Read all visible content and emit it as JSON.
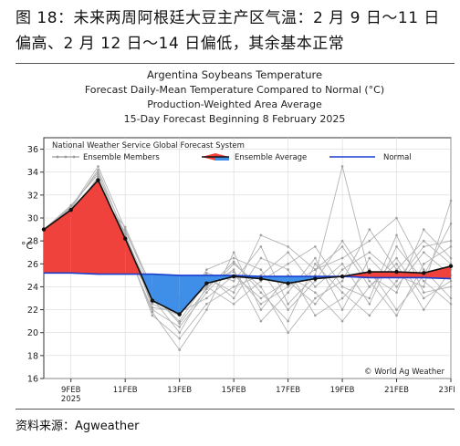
{
  "caption": "图 18：未来两周阿根廷大豆主产区气温：2 月 9 日～11 日偏高、2 月 12 日～14 日偏低，其余基本正常",
  "source": "资料来源：Agweather",
  "chart_data": {
    "type": "line",
    "title_lines": [
      "Argentina Soybeans Temperature",
      "Forecast Daily-Mean Temperature Compared to Normal (°C)",
      "Production-Weighted Area Average",
      "15-Day Forecast Beginning 8 February 2025"
    ],
    "ylabel": "°C",
    "ylim": [
      16,
      37
    ],
    "yticks": [
      "16",
      "18",
      "20",
      "22",
      "24",
      "26",
      "28",
      "30",
      "32",
      "34",
      "36"
    ],
    "xlim": [
      0,
      15
    ],
    "xticks": [
      {
        "x": 1,
        "label": "9FEB",
        "sub": "2025"
      },
      {
        "x": 3,
        "label": "11FEB",
        "sub": ""
      },
      {
        "x": 5,
        "label": "13FEB",
        "sub": ""
      },
      {
        "x": 7,
        "label": "15FEB",
        "sub": ""
      },
      {
        "x": 9,
        "label": "17FEB",
        "sub": ""
      },
      {
        "x": 11,
        "label": "19FEB",
        "sub": ""
      },
      {
        "x": 13,
        "label": "21FEB",
        "sub": ""
      },
      {
        "x": 15,
        "label": "23FEB",
        "sub": ""
      }
    ],
    "legend": {
      "header": "National Weather Service Global Forecast System",
      "members_label": "Ensemble Members",
      "average_label": "Ensemble Average",
      "normal_label": "Normal"
    },
    "credit": "© World Ag Weather",
    "x": [
      0,
      1,
      2,
      3,
      4,
      5,
      6,
      7,
      8,
      9,
      10,
      11,
      12,
      13,
      14,
      15
    ],
    "series": [
      {
        "name": "Ensemble Average",
        "values": [
          29.0,
          30.7,
          33.3,
          28.2,
          22.8,
          21.6,
          24.3,
          24.9,
          24.7,
          24.3,
          24.7,
          24.9,
          25.3,
          25.3,
          25.2,
          25.8
        ]
      },
      {
        "name": "Normal",
        "values": [
          25.2,
          25.2,
          25.1,
          25.1,
          25.1,
          25.0,
          25.0,
          25.0,
          24.9,
          24.9,
          24.9,
          24.9,
          24.8,
          24.8,
          24.8,
          24.7
        ]
      }
    ],
    "ensemble_members": [
      [
        29.0,
        30.5,
        33.0,
        28.5,
        23.2,
        21.0,
        24.5,
        25.3,
        22.5,
        24.0,
        25.5,
        27.5,
        24.0,
        26.5,
        23.0,
        24.5
      ],
      [
        29.0,
        31.0,
        34.0,
        27.5,
        22.0,
        20.5,
        23.5,
        26.0,
        24.0,
        20.0,
        23.0,
        24.5,
        29.0,
        25.5,
        28.0,
        26.0
      ],
      [
        29.0,
        30.8,
        32.5,
        28.8,
        24.0,
        22.5,
        25.0,
        23.0,
        26.5,
        25.5,
        21.5,
        23.0,
        25.5,
        22.0,
        25.0,
        29.5
      ],
      [
        29.0,
        30.2,
        33.5,
        27.8,
        21.5,
        19.5,
        22.5,
        24.0,
        25.0,
        27.0,
        24.0,
        26.0,
        22.5,
        27.5,
        24.5,
        22.5
      ],
      [
        29.0,
        30.9,
        34.5,
        29.0,
        23.5,
        22.0,
        24.0,
        25.5,
        21.0,
        23.5,
        26.5,
        22.0,
        26.5,
        24.0,
        27.0,
        25.0
      ],
      [
        29.0,
        30.6,
        32.8,
        28.0,
        22.5,
        21.5,
        25.5,
        26.5,
        25.5,
        22.0,
        24.5,
        28.0,
        24.5,
        21.5,
        26.0,
        27.5
      ],
      [
        29.0,
        30.4,
        33.2,
        27.2,
        23.0,
        20.0,
        24.0,
        22.5,
        24.5,
        26.0,
        27.5,
        24.0,
        23.0,
        28.5,
        23.5,
        24.0
      ],
      [
        29.0,
        31.1,
        33.8,
        28.6,
        22.2,
        21.8,
        23.0,
        25.0,
        23.0,
        24.5,
        22.5,
        25.5,
        27.0,
        25.0,
        24.0,
        31.5
      ],
      [
        29.0,
        30.7,
        32.2,
        29.2,
        23.8,
        23.0,
        25.2,
        24.5,
        27.5,
        22.5,
        25.0,
        34.5,
        25.0,
        23.5,
        29.0,
        26.5
      ],
      [
        29.0,
        30.3,
        33.6,
        27.6,
        21.8,
        18.5,
        22.0,
        27.0,
        22.0,
        25.0,
        23.5,
        21.0,
        24.0,
        26.0,
        22.0,
        25.5
      ],
      [
        29.0,
        30.8,
        34.2,
        28.4,
        22.6,
        22.8,
        24.8,
        23.5,
        28.5,
        27.5,
        25.5,
        26.5,
        28.0,
        30.0,
        25.5,
        23.0
      ],
      [
        29.0,
        30.5,
        32.6,
        27.9,
        23.4,
        20.8,
        23.8,
        26.2,
        23.5,
        21.0,
        26.0,
        23.5,
        21.5,
        24.5,
        27.5,
        28.0
      ]
    ],
    "colors": {
      "above": "#f0423d",
      "below": "#3f8fe8",
      "normal": "#1a3fd0",
      "members": "#b4b4b4",
      "average": "#111111"
    }
  }
}
